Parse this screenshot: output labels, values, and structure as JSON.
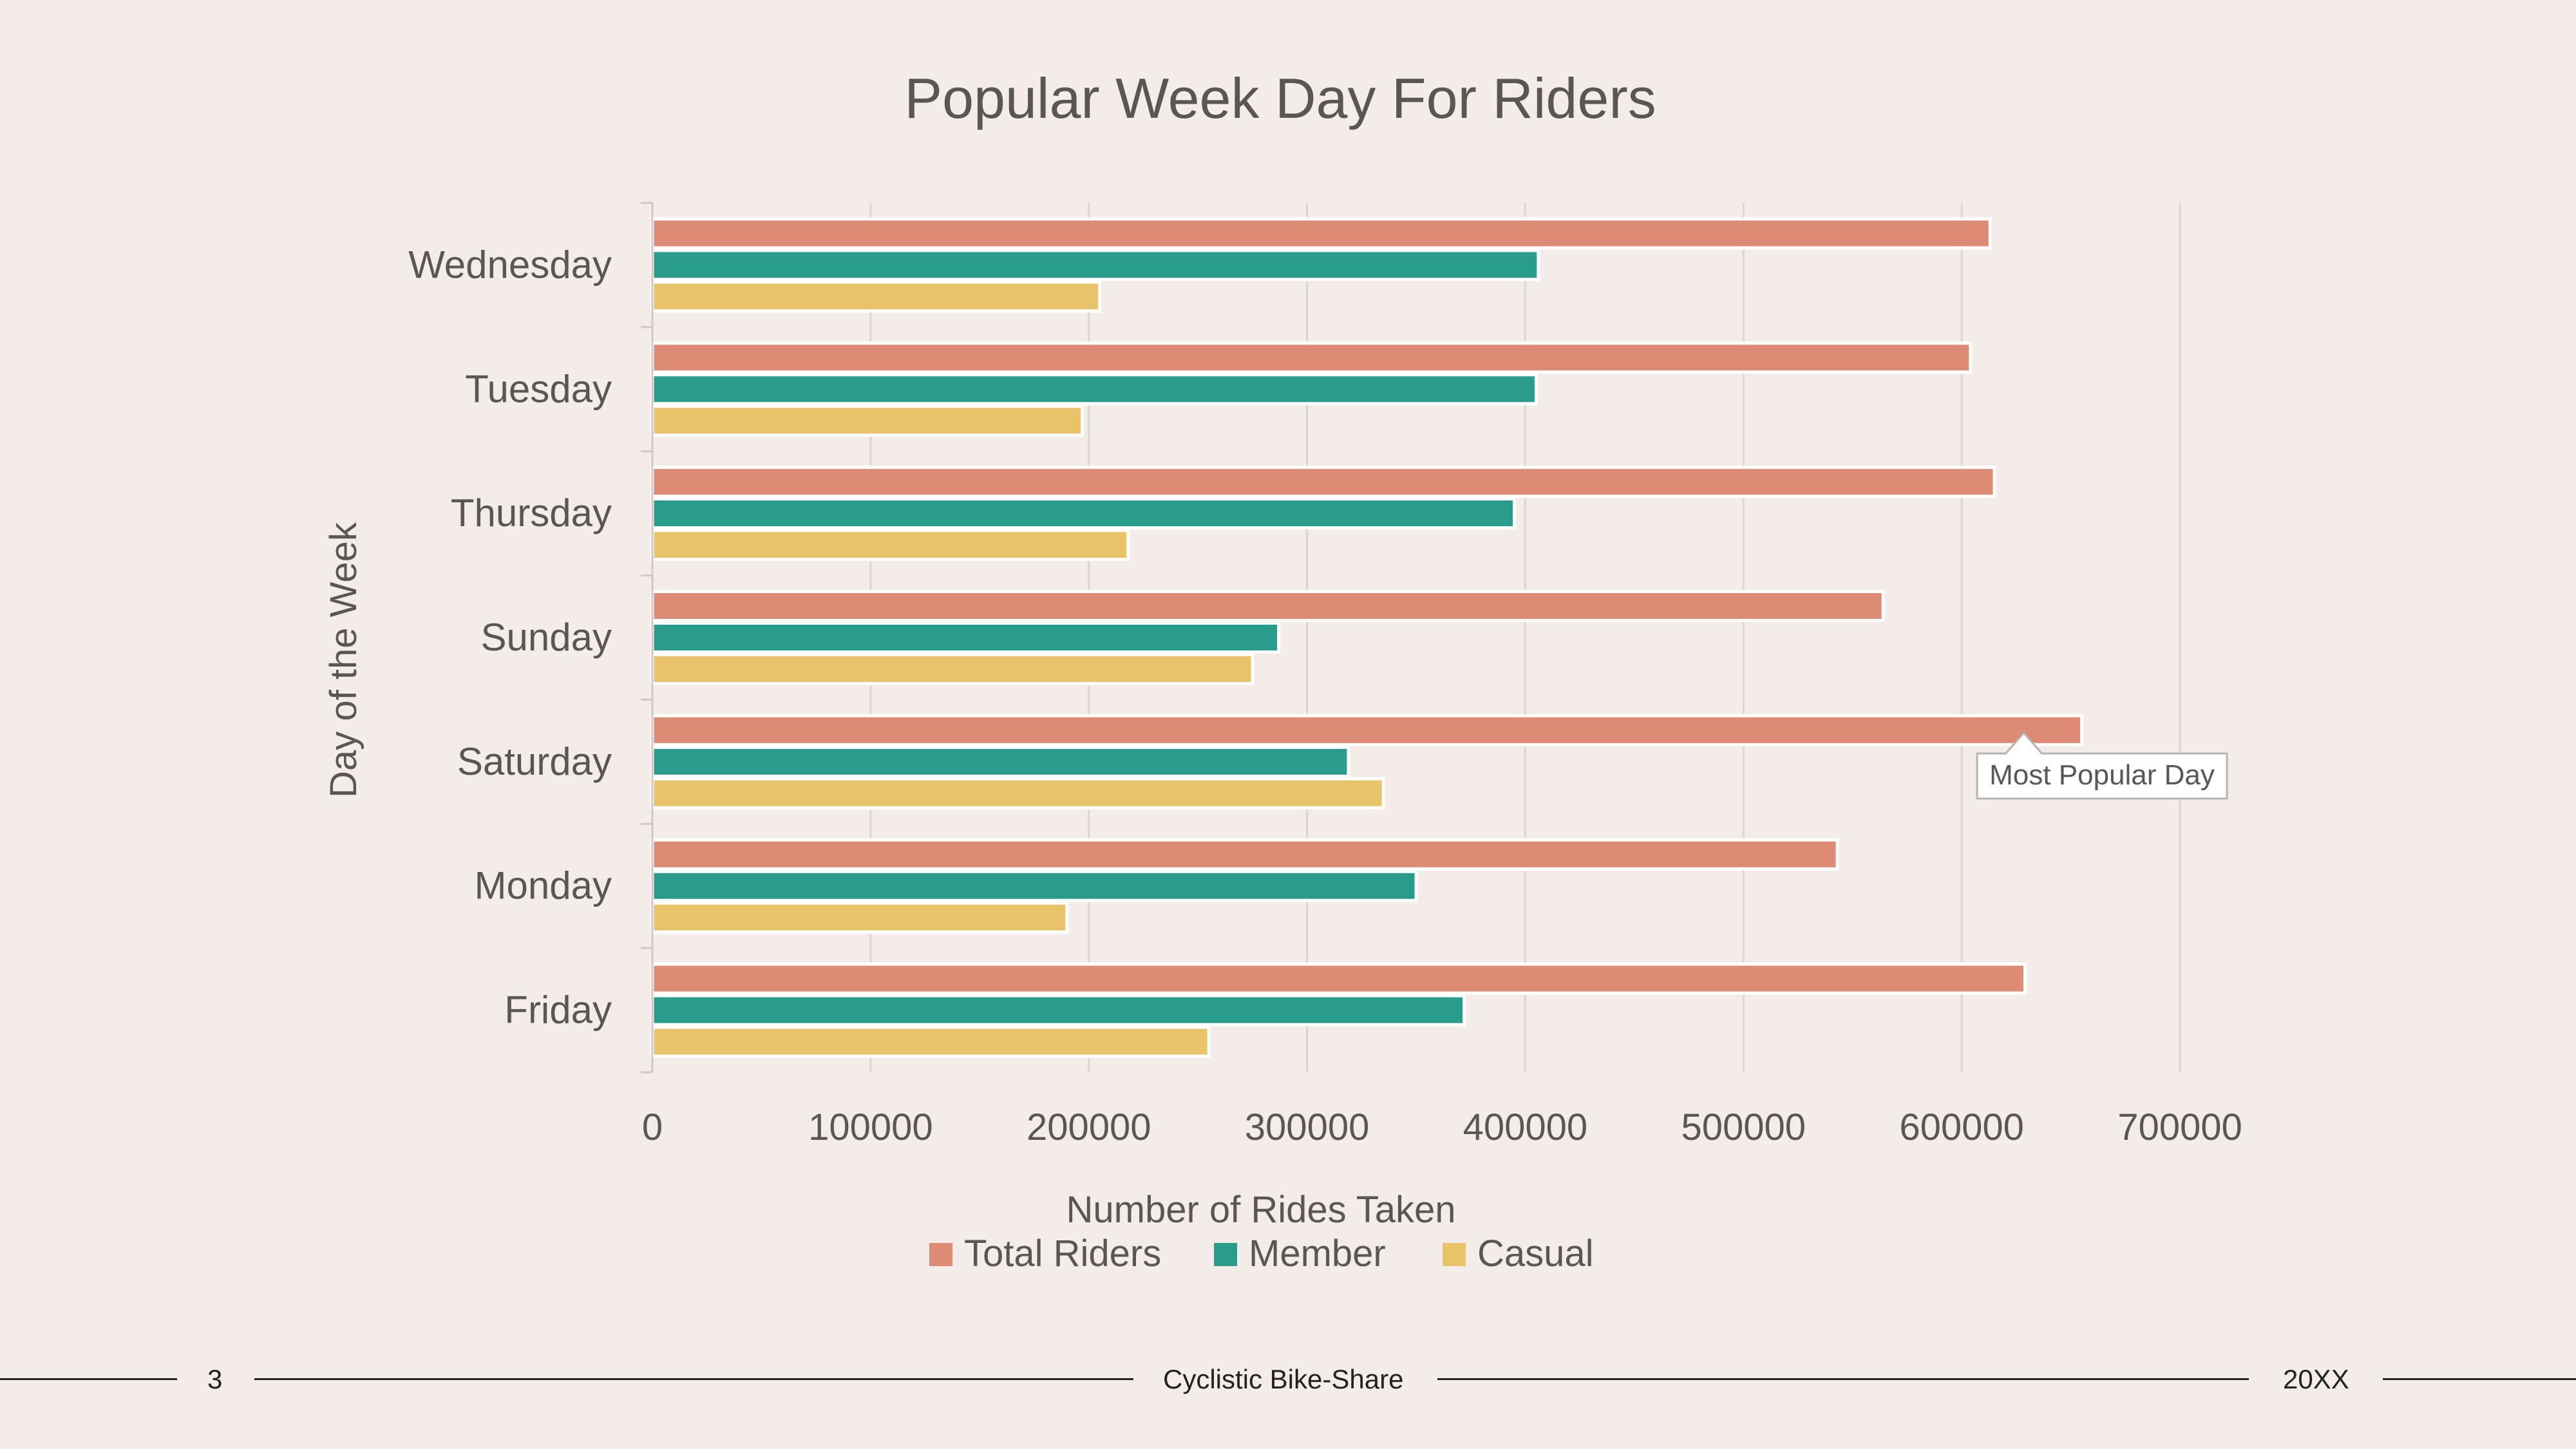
{
  "slide": {
    "page_number": "3",
    "footer_title": "Cyclistic Bike-Share",
    "year": "20XX"
  },
  "chart_data": {
    "type": "bar",
    "orientation": "horizontal",
    "title": "Popular Week Day For Riders",
    "xlabel": "Number of Rides Taken",
    "ylabel": "Day of the Week",
    "categories": [
      "Wednesday",
      "Tuesday",
      "Thursday",
      "Sunday",
      "Saturday",
      "Monday",
      "Friday"
    ],
    "series": [
      {
        "name": "Total Riders",
        "color": "#de8b75",
        "values": [
          613000,
          604000,
          615000,
          564000,
          655000,
          543000,
          629000
        ]
      },
      {
        "name": "Member",
        "color": "#2a9c8c",
        "values": [
          406000,
          405000,
          395000,
          287000,
          319000,
          350000,
          372000
        ]
      },
      {
        "name": "Casual",
        "color": "#e8c36a",
        "values": [
          205000,
          197000,
          218000,
          275000,
          335000,
          190000,
          255000
        ]
      }
    ],
    "xlim": [
      0,
      700000
    ],
    "xticks": [
      "0",
      "100000",
      "200000",
      "300000",
      "400000",
      "500000",
      "600000",
      "700000"
    ],
    "grid": true,
    "legend_position": "bottom",
    "annotation": {
      "text": "Most Popular Day",
      "category": "Saturday",
      "series": "Total Riders"
    }
  }
}
